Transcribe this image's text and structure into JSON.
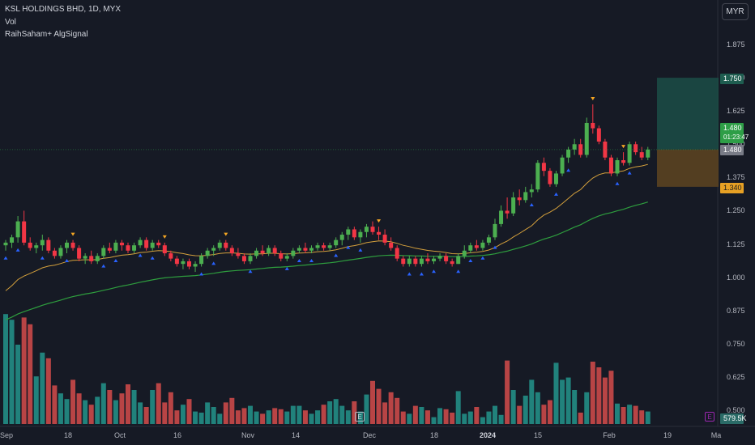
{
  "header": {
    "title": "KSL HOLDINGS BHD, 1D, MYX",
    "vol_label": "Vol",
    "indicator_label": "RaihSaham+ AlgSignal",
    "currency_button": "MYR"
  },
  "price_tags": {
    "target": "1.750",
    "last_price": "1.480",
    "countdown": "01:23:47",
    "entry": "1.480",
    "stop": "1.340",
    "volume": "579.5K"
  },
  "markers": {
    "event_icon": "E"
  },
  "colors": {
    "up": "#26a69a",
    "down": "#ef5350",
    "up_candle": "#4caf50",
    "down_candle": "#f23645",
    "ma_fast": "#d4a03c",
    "ma_slow": "#2e9e3e",
    "buy_signal": "#2962ff",
    "sell_signal": "#f5a623",
    "target_zone": "#1b4d47",
    "stop_zone": "#5a4321"
  },
  "chart_data": {
    "type": "candlestick",
    "y_ticks": [
      "1.875",
      "1.750",
      "1.625",
      "1.500",
      "1.375",
      "1.250",
      "1.125",
      "1.000",
      "0.875",
      "0.750",
      "0.625",
      "0.500"
    ],
    "x_ticks": [
      "Sep",
      "18",
      "Oct",
      "16",
      "Nov",
      "14",
      "Dec",
      "18",
      "2024",
      "15",
      "Feb",
      "19",
      "Ma"
    ],
    "ylim": [
      0.49,
      1.93
    ],
    "candles": [
      [
        1.12,
        1.14,
        1.1,
        1.13
      ],
      [
        1.13,
        1.16,
        1.11,
        1.15
      ],
      [
        1.15,
        1.23,
        1.13,
        1.21
      ],
      [
        1.21,
        1.25,
        1.12,
        1.13
      ],
      [
        1.13,
        1.15,
        1.1,
        1.11
      ],
      [
        1.11,
        1.13,
        1.09,
        1.12
      ],
      [
        1.12,
        1.16,
        1.1,
        1.14
      ],
      [
        1.14,
        1.15,
        1.09,
        1.1
      ],
      [
        1.1,
        1.11,
        1.07,
        1.08
      ],
      [
        1.08,
        1.12,
        1.07,
        1.11
      ],
      [
        1.11,
        1.14,
        1.09,
        1.13
      ],
      [
        1.13,
        1.14,
        1.1,
        1.11
      ],
      [
        1.11,
        1.12,
        1.06,
        1.07
      ],
      [
        1.07,
        1.09,
        1.05,
        1.08
      ],
      [
        1.08,
        1.1,
        1.05,
        1.06
      ],
      [
        1.06,
        1.09,
        1.05,
        1.08
      ],
      [
        1.08,
        1.12,
        1.07,
        1.11
      ],
      [
        1.11,
        1.13,
        1.09,
        1.1
      ],
      [
        1.1,
        1.14,
        1.09,
        1.13
      ],
      [
        1.13,
        1.14,
        1.1,
        1.12
      ],
      [
        1.12,
        1.13,
        1.09,
        1.1
      ],
      [
        1.1,
        1.13,
        1.09,
        1.12
      ],
      [
        1.12,
        1.15,
        1.11,
        1.14
      ],
      [
        1.14,
        1.15,
        1.1,
        1.11
      ],
      [
        1.11,
        1.14,
        1.1,
        1.13
      ],
      [
        1.13,
        1.14,
        1.11,
        1.12
      ],
      [
        1.12,
        1.13,
        1.08,
        1.09
      ],
      [
        1.09,
        1.1,
        1.06,
        1.07
      ],
      [
        1.07,
        1.08,
        1.04,
        1.05
      ],
      [
        1.05,
        1.07,
        1.03,
        1.06
      ],
      [
        1.06,
        1.07,
        1.03,
        1.04
      ],
      [
        1.04,
        1.06,
        1.02,
        1.05
      ],
      [
        1.05,
        1.09,
        1.04,
        1.08
      ],
      [
        1.08,
        1.11,
        1.07,
        1.1
      ],
      [
        1.1,
        1.12,
        1.08,
        1.11
      ],
      [
        1.11,
        1.14,
        1.1,
        1.13
      ],
      [
        1.13,
        1.14,
        1.1,
        1.11
      ],
      [
        1.11,
        1.12,
        1.08,
        1.09
      ],
      [
        1.09,
        1.11,
        1.07,
        1.08
      ],
      [
        1.08,
        1.09,
        1.05,
        1.06
      ],
      [
        1.06,
        1.09,
        1.05,
        1.08
      ],
      [
        1.08,
        1.11,
        1.07,
        1.1
      ],
      [
        1.1,
        1.12,
        1.08,
        1.09
      ],
      [
        1.09,
        1.12,
        1.08,
        1.11
      ],
      [
        1.11,
        1.12,
        1.08,
        1.09
      ],
      [
        1.09,
        1.1,
        1.06,
        1.07
      ],
      [
        1.07,
        1.09,
        1.06,
        1.08
      ],
      [
        1.08,
        1.11,
        1.07,
        1.1
      ],
      [
        1.1,
        1.12,
        1.09,
        1.11
      ],
      [
        1.11,
        1.13,
        1.09,
        1.1
      ],
      [
        1.1,
        1.12,
        1.09,
        1.11
      ],
      [
        1.11,
        1.13,
        1.1,
        1.12
      ],
      [
        1.12,
        1.13,
        1.1,
        1.11
      ],
      [
        1.11,
        1.13,
        1.1,
        1.12
      ],
      [
        1.12,
        1.15,
        1.11,
        1.14
      ],
      [
        1.14,
        1.17,
        1.12,
        1.16
      ],
      [
        1.16,
        1.19,
        1.14,
        1.18
      ],
      [
        1.18,
        1.19,
        1.14,
        1.15
      ],
      [
        1.15,
        1.18,
        1.13,
        1.17
      ],
      [
        1.17,
        1.2,
        1.15,
        1.19
      ],
      [
        1.19,
        1.21,
        1.16,
        1.17
      ],
      [
        1.17,
        1.19,
        1.14,
        1.16
      ],
      [
        1.16,
        1.18,
        1.12,
        1.13
      ],
      [
        1.13,
        1.15,
        1.1,
        1.11
      ],
      [
        1.11,
        1.12,
        1.06,
        1.07
      ],
      [
        1.07,
        1.08,
        1.04,
        1.05
      ],
      [
        1.05,
        1.08,
        1.04,
        1.07
      ],
      [
        1.07,
        1.08,
        1.04,
        1.05
      ],
      [
        1.05,
        1.08,
        1.04,
        1.07
      ],
      [
        1.07,
        1.09,
        1.05,
        1.06
      ],
      [
        1.06,
        1.08,
        1.05,
        1.07
      ],
      [
        1.07,
        1.09,
        1.06,
        1.08
      ],
      [
        1.08,
        1.09,
        1.05,
        1.06
      ],
      [
        1.06,
        1.07,
        1.04,
        1.05
      ],
      [
        1.05,
        1.09,
        1.05,
        1.08
      ],
      [
        1.08,
        1.12,
        1.07,
        1.1
      ],
      [
        1.1,
        1.13,
        1.09,
        1.12
      ],
      [
        1.12,
        1.14,
        1.1,
        1.11
      ],
      [
        1.11,
        1.14,
        1.1,
        1.13
      ],
      [
        1.13,
        1.16,
        1.12,
        1.15
      ],
      [
        1.15,
        1.22,
        1.14,
        1.2
      ],
      [
        1.2,
        1.27,
        1.19,
        1.25
      ],
      [
        1.25,
        1.3,
        1.22,
        1.24
      ],
      [
        1.24,
        1.32,
        1.23,
        1.3
      ],
      [
        1.3,
        1.33,
        1.27,
        1.29
      ],
      [
        1.29,
        1.34,
        1.28,
        1.32
      ],
      [
        1.32,
        1.35,
        1.3,
        1.33
      ],
      [
        1.33,
        1.44,
        1.32,
        1.43
      ],
      [
        1.43,
        1.45,
        1.38,
        1.4
      ],
      [
        1.4,
        1.41,
        1.34,
        1.35
      ],
      [
        1.35,
        1.4,
        1.34,
        1.39
      ],
      [
        1.39,
        1.46,
        1.38,
        1.45
      ],
      [
        1.45,
        1.49,
        1.43,
        1.48
      ],
      [
        1.48,
        1.52,
        1.46,
        1.5
      ],
      [
        1.5,
        1.52,
        1.45,
        1.46
      ],
      [
        1.46,
        1.6,
        1.45,
        1.58
      ],
      [
        1.58,
        1.65,
        1.54,
        1.56
      ],
      [
        1.56,
        1.57,
        1.5,
        1.51
      ],
      [
        1.51,
        1.52,
        1.44,
        1.45
      ],
      [
        1.45,
        1.46,
        1.38,
        1.39
      ],
      [
        1.39,
        1.45,
        1.38,
        1.44
      ],
      [
        1.44,
        1.47,
        1.42,
        1.43
      ],
      [
        1.43,
        1.51,
        1.42,
        1.5
      ],
      [
        1.5,
        1.51,
        1.46,
        1.47
      ],
      [
        1.47,
        1.49,
        1.44,
        1.45
      ],
      [
        1.45,
        1.49,
        1.44,
        1.48
      ]
    ],
    "volume": [
      0.97,
      0.92,
      0.7,
      0.94,
      0.88,
      0.42,
      0.63,
      0.58,
      0.34,
      0.27,
      0.22,
      0.39,
      0.27,
      0.21,
      0.17,
      0.24,
      0.36,
      0.3,
      0.21,
      0.27,
      0.35,
      0.3,
      0.19,
      0.15,
      0.3,
      0.36,
      0.19,
      0.28,
      0.12,
      0.17,
      0.22,
      0.11,
      0.1,
      0.19,
      0.15,
      0.09,
      0.19,
      0.23,
      0.12,
      0.14,
      0.16,
      0.11,
      0.09,
      0.12,
      0.14,
      0.13,
      0.11,
      0.16,
      0.16,
      0.12,
      0.09,
      0.12,
      0.17,
      0.2,
      0.22,
      0.16,
      0.12,
      0.2,
      0.11,
      0.26,
      0.38,
      0.31,
      0.19,
      0.28,
      0.23,
      0.11,
      0.09,
      0.16,
      0.15,
      0.12,
      0.06,
      0.14,
      0.13,
      0.1,
      0.29,
      0.09,
      0.11,
      0.15,
      0.06,
      0.11,
      0.16,
      0.08,
      0.56,
      0.3,
      0.16,
      0.25,
      0.39,
      0.28,
      0.17,
      0.21,
      0.54,
      0.39,
      0.41,
      0.3,
      0.1,
      0.28,
      0.55,
      0.5,
      0.41,
      0.47,
      0.18,
      0.15,
      0.17,
      0.16,
      0.12,
      0.11
    ],
    "volume_colors": "custom"
  }
}
